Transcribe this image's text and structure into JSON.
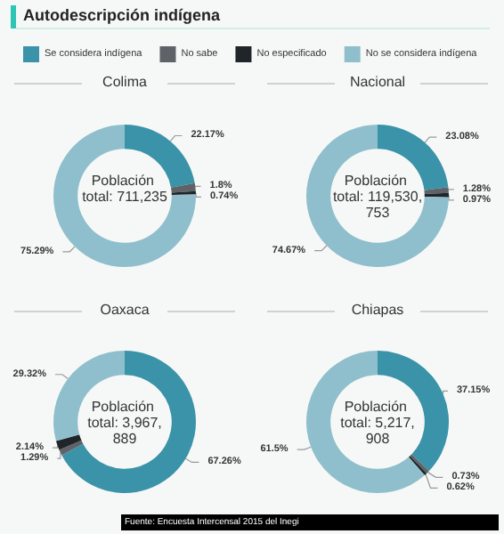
{
  "chart_data": {
    "type": "donut",
    "title": "Autodescripción indígena",
    "legend": "top",
    "categories": [
      "Se considera indígena",
      "No sabe",
      "No especificado",
      "No se considera indígena"
    ],
    "colors": [
      "#3a93a8",
      "#5f6368",
      "#1f2529",
      "#8fbfcc"
    ],
    "series": [
      {
        "name": "Colima",
        "values": [
          22.17,
          1.8,
          0.74,
          75.29
        ],
        "value_labels": [
          "22.17%",
          "1.8%",
          "0.74%",
          "75.29%"
        ]
      },
      {
        "name": "Nacional",
        "values": [
          23.08,
          1.28,
          0.97,
          74.67
        ],
        "value_labels": [
          "23.08%",
          "1.28%",
          "0.97%",
          "74.67%"
        ]
      },
      {
        "name": "Oaxaca",
        "values": [
          67.26,
          1.29,
          2.14,
          29.32
        ],
        "value_labels": [
          "67.26%",
          "1.29%",
          "2.14%",
          "29.32%"
        ]
      },
      {
        "name": "Chiapas",
        "values": [
          37.15,
          0.73,
          0.62,
          61.5
        ],
        "value_labels": [
          "37.15%",
          "0.73%",
          "0.62%",
          "61.5%"
        ]
      }
    ],
    "annotations": [
      "Población total: 711,235",
      "Población total: 119,530,753",
      "Población total: 3,967,889",
      "Población total: 5,217,908",
      "Fuente: Encuesta Intercensal 2015 del Inegi"
    ]
  }
}
